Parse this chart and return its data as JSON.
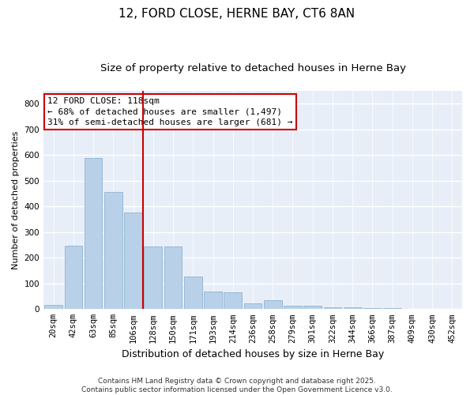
{
  "title": "12, FORD CLOSE, HERNE BAY, CT6 8AN",
  "subtitle": "Size of property relative to detached houses in Herne Bay",
  "xlabel": "Distribution of detached houses by size in Herne Bay",
  "ylabel": "Number of detached properties",
  "categories": [
    "20sqm",
    "42sqm",
    "63sqm",
    "85sqm",
    "106sqm",
    "128sqm",
    "150sqm",
    "171sqm",
    "193sqm",
    "214sqm",
    "236sqm",
    "258sqm",
    "279sqm",
    "301sqm",
    "322sqm",
    "344sqm",
    "366sqm",
    "387sqm",
    "409sqm",
    "430sqm",
    "452sqm"
  ],
  "values": [
    15,
    248,
    588,
    455,
    375,
    245,
    245,
    128,
    70,
    65,
    22,
    35,
    14,
    14,
    8,
    8,
    5,
    3,
    2,
    2,
    1
  ],
  "bar_color": "#b8d0e8",
  "bar_edge_color": "#90b4d0",
  "vline_color": "#cc0000",
  "annotation_text": "12 FORD CLOSE: 118sqm\n← 68% of detached houses are smaller (1,497)\n31% of semi-detached houses are larger (681) →",
  "annotation_box_color": "#ffffff",
  "annotation_box_edge_color": "#cc0000",
  "ylim": [
    0,
    850
  ],
  "yticks": [
    0,
    100,
    200,
    300,
    400,
    500,
    600,
    700,
    800
  ],
  "plot_bg_color": "#e8eef8",
  "fig_bg_color": "#ffffff",
  "grid_color": "#ffffff",
  "footer": "Contains HM Land Registry data © Crown copyright and database right 2025.\nContains public sector information licensed under the Open Government Licence v3.0.",
  "title_fontsize": 11,
  "subtitle_fontsize": 9.5,
  "xlabel_fontsize": 9,
  "ylabel_fontsize": 8,
  "tick_fontsize": 7.5,
  "annotation_fontsize": 8,
  "footer_fontsize": 6.5
}
